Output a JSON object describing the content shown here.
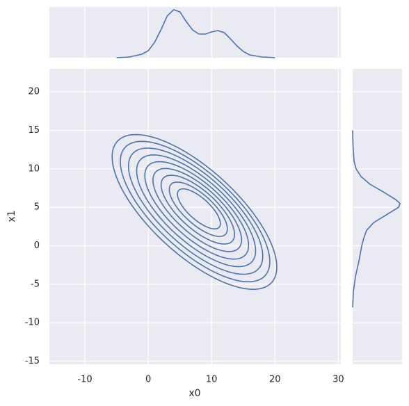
{
  "chart_data": [
    {
      "type": "contour",
      "xlabel": "x0",
      "ylabel": "x1",
      "color": "#4c72b0",
      "background": "#eaeaf2",
      "grid": true,
      "xlim": [
        -15.6,
        30.4
      ],
      "ylim": [
        -15.4,
        23
      ],
      "xticks": [
        -10,
        0,
        10,
        20,
        30
      ],
      "yticks": [
        -15,
        -10,
        -5,
        0,
        5,
        10,
        15,
        20
      ],
      "contours": [
        {
          "center": [
            8,
            4.8
          ],
          "a": 4,
          "b": 1.5,
          "angle": -35
        },
        {
          "center": [
            7.91,
            4.75
          ],
          "a": 5.41,
          "b": 2.06,
          "angle": -35
        },
        {
          "center": [
            7.83,
            4.7
          ],
          "a": 6.83,
          "b": 2.63,
          "angle": -35
        },
        {
          "center": [
            7.74,
            4.65
          ],
          "a": 8.24,
          "b": 3.19,
          "angle": -35
        },
        {
          "center": [
            7.65,
            4.6
          ],
          "a": 9.65,
          "b": 3.75,
          "angle": -35
        },
        {
          "center": [
            7.56,
            4.55
          ],
          "a": 11.06,
          "b": 4.31,
          "angle": -35
        },
        {
          "center": [
            7.48,
            4.5
          ],
          "a": 12.48,
          "b": 4.88,
          "angle": -35
        },
        {
          "center": [
            7.39,
            4.45
          ],
          "a": 13.89,
          "b": 5.44,
          "angle": -35
        },
        {
          "center": [
            7.3,
            4.4
          ],
          "a": 15.3,
          "b": 6,
          "angle": -35
        }
      ]
    },
    {
      "type": "line",
      "color": "#4c72b0",
      "background": "#eaeaf2",
      "grid": true,
      "xlim": [
        -15.6,
        30.4
      ],
      "ylim": [
        0,
        0.073
      ],
      "xticks": [
        -10,
        0,
        10,
        20,
        30
      ],
      "x": [
        -5,
        -3,
        -1,
        0,
        1,
        2,
        3,
        4,
        5,
        6,
        7,
        8,
        9,
        10,
        11,
        12,
        13,
        14,
        15,
        16,
        18,
        20
      ],
      "values": [
        0,
        0.001,
        0.005,
        0.01,
        0.022,
        0.04,
        0.06,
        0.069,
        0.066,
        0.052,
        0.04,
        0.034,
        0.034,
        0.037,
        0.039,
        0.036,
        0.027,
        0.017,
        0.009,
        0.004,
        0.001,
        0
      ]
    },
    {
      "type": "hline",
      "color": "#4c72b0",
      "background": "#eaeaf2",
      "grid": true,
      "xlim": [
        0,
        0.071
      ],
      "ylim": [
        -15.4,
        23
      ],
      "yticks": [
        -15,
        -10,
        -5,
        0,
        5,
        10,
        15,
        20
      ],
      "y": [
        -8,
        -6,
        -4,
        -2,
        0,
        1,
        2,
        3,
        4,
        5,
        5.5,
        6,
        7,
        8,
        9,
        10,
        11,
        13,
        15
      ],
      "values": [
        0,
        0.001,
        0.004,
        0.009,
        0.013,
        0.016,
        0.02,
        0.03,
        0.048,
        0.066,
        0.068,
        0.062,
        0.044,
        0.025,
        0.012,
        0.005,
        0.002,
        0.0005,
        0
      ]
    }
  ]
}
